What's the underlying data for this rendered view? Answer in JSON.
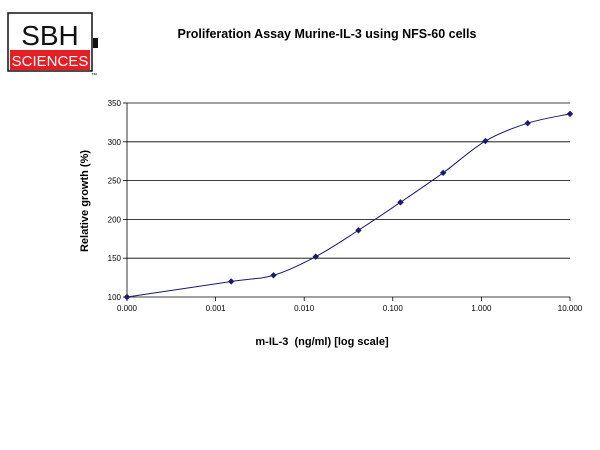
{
  "logo": {
    "top_text": "SBH",
    "bottom_text": "SCIENCES",
    "mark": "™",
    "colors": {
      "red": "#e31e24",
      "black": "#111111"
    }
  },
  "chart_data": {
    "type": "line",
    "title": "Proliferation Assay Murine-IL-3 using NFS-60 cells",
    "xlabel": "m-IL-3  (ng/ml) [log scale]",
    "ylabel": "Relative growth (%)",
    "x_scale": "log",
    "x_tick_labels": [
      "0.000",
      "0.001",
      "0.010",
      "0.100",
      "1.000",
      "10.000"
    ],
    "y_ticks": [
      100,
      150,
      200,
      250,
      300,
      350
    ],
    "ylim": [
      100,
      350
    ],
    "grid": "horizontal",
    "series": [
      {
        "x": [
          0.0001,
          0.0015,
          0.0045,
          0.0135,
          0.041,
          0.122,
          0.37,
          1.11,
          3.33,
          10
        ],
        "y": [
          100,
          120,
          128,
          152,
          186,
          222,
          260,
          301,
          324,
          336
        ],
        "color": "#1a1a6e"
      }
    ]
  }
}
